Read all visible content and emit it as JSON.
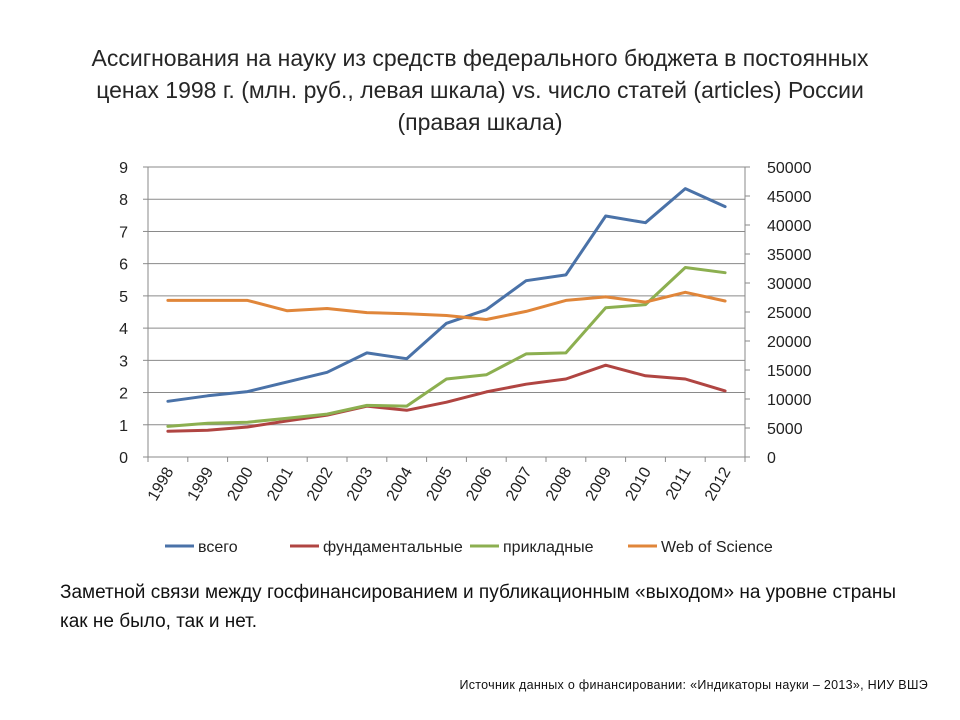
{
  "title_lines": [
    "Ассигнования на науку из средств федерального бюджета в постоянных",
    "ценах 1998 г. (млн. руб., левая шкала) vs. число статей (articles) России",
    "(правая шкала)"
  ],
  "note": "Заметной связи между госфинансированием и публикационным «выходом» на уровне страны как не было, так и нет.",
  "source": "Источник данных о финансировании: «Индикаторы науки – 2013», НИУ ВШЭ",
  "chart_data": {
    "type": "line",
    "title": "Ассигнования на науку из средств федерального бюджета в постоянных ценах 1998 г. (млн. руб., левая шкала) vs. число статей (articles) России (правая шкала)",
    "categories": [
      "1998",
      "1999",
      "2000",
      "2001",
      "2002",
      "2003",
      "2004",
      "2005",
      "2006",
      "2007",
      "2008",
      "2009",
      "2010",
      "2011",
      "2012"
    ],
    "y_left": {
      "min": 0,
      "max": 9,
      "ticks": [
        "0",
        "1",
        "2",
        "3",
        "4",
        "5",
        "6",
        "7",
        "8",
        "9"
      ]
    },
    "y_right": {
      "min": 0,
      "max": 50000,
      "ticks": [
        "0",
        "5000",
        "10000",
        "15000",
        "20000",
        "25000",
        "30000",
        "35000",
        "40000",
        "45000",
        "50000"
      ]
    },
    "series": [
      {
        "name": "всего",
        "axis": "left",
        "color": "#4a72a8",
        "values": [
          1.73,
          1.9,
          2.03,
          2.33,
          2.63,
          3.23,
          3.05,
          4.15,
          4.57,
          5.47,
          5.65,
          7.48,
          7.27,
          8.33,
          7.77
        ]
      },
      {
        "name": "фундаментальные",
        "axis": "left",
        "color": "#b04542",
        "values": [
          0.8,
          0.83,
          0.93,
          1.12,
          1.3,
          1.58,
          1.45,
          1.7,
          2.02,
          2.26,
          2.42,
          2.85,
          2.52,
          2.42,
          2.05
        ]
      },
      {
        "name": "прикладные",
        "axis": "left",
        "color": "#8caf50",
        "values": [
          0.95,
          1.05,
          1.08,
          1.2,
          1.33,
          1.6,
          1.58,
          2.42,
          2.55,
          3.2,
          3.23,
          4.63,
          4.73,
          5.88,
          5.72
        ]
      },
      {
        "name": "Web of Science",
        "axis": "right",
        "color": "#e0863a",
        "values": [
          27000,
          27000,
          27000,
          25200,
          25600,
          24900,
          24700,
          24400,
          23700,
          25100,
          27000,
          27600,
          26700,
          28400,
          26900
        ]
      }
    ]
  }
}
